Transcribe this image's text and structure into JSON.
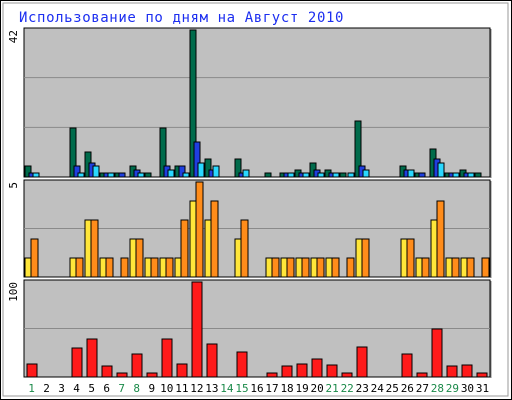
{
  "chart_data": {
    "type": "bar",
    "title": "Использование по дням на Август 2010",
    "categories": [
      "1",
      "2",
      "3",
      "4",
      "5",
      "6",
      "7",
      "8",
      "9",
      "10",
      "11",
      "12",
      "13",
      "14",
      "15",
      "16",
      "17",
      "18",
      "19",
      "20",
      "21",
      "22",
      "23",
      "24",
      "25",
      "26",
      "27",
      "28",
      "29",
      "30",
      "31"
    ],
    "weekend_days": [
      "1",
      "7",
      "8",
      "14",
      "15",
      "21",
      "22",
      "28",
      "29"
    ],
    "panels": [
      {
        "ymax_label": "42",
        "ylim": [
          0,
          42
        ],
        "series": [
          {
            "color": "#006b4b",
            "values": [
              3,
              0,
              0,
              14,
              7,
              1,
              1,
              3,
              1,
              14,
              3,
              42,
              5,
              0,
              5,
              0,
              1,
              1,
              2,
              4,
              2,
              1,
              16,
              0,
              0,
              3,
              1,
              8,
              1,
              2,
              1
            ]
          },
          {
            "color": "#1f3fe0",
            "values": [
              1,
              0,
              0,
              3,
              4,
              1,
              1,
              2,
              0,
              3,
              3,
              10,
              2,
              0,
              1,
              0,
              0,
              1,
              1,
              2,
              1,
              0,
              3,
              0,
              0,
              2,
              1,
              5,
              1,
              1,
              0
            ]
          },
          {
            "color": "#2ad8ff",
            "values": [
              1,
              0,
              0,
              1,
              3,
              1,
              0,
              1,
              0,
              2,
              1,
              4,
              3,
              0,
              2,
              0,
              0,
              1,
              1,
              1,
              1,
              1,
              2,
              0,
              0,
              2,
              0,
              4,
              1,
              1,
              0
            ]
          }
        ]
      },
      {
        "ymax_label": "5",
        "ylim": [
          0,
          5
        ],
        "series": [
          {
            "color": "#ffe63a",
            "values": [
              1,
              0,
              0,
              1,
              3,
              1,
              0,
              2,
              1,
              1,
              1,
              4,
              3,
              0,
              2,
              0,
              1,
              1,
              1,
              1,
              1,
              0,
              2,
              0,
              0,
              2,
              1,
              3,
              1,
              1,
              0
            ]
          },
          {
            "color": "#ff8c1a",
            "values": [
              2,
              0,
              0,
              1,
              3,
              1,
              1,
              2,
              1,
              1,
              3,
              5,
              4,
              0,
              3,
              0,
              1,
              1,
              1,
              1,
              1,
              1,
              2,
              0,
              0,
              2,
              1,
              4,
              1,
              1,
              1
            ]
          }
        ]
      },
      {
        "ymax_label": "100",
        "ylim": [
          0,
          100
        ],
        "series": [
          {
            "color": "#ff1a1a",
            "values": [
              14,
              0,
              0,
              31,
              40,
              12,
              4,
              24,
              4,
              40,
              14,
              100,
              35,
              0,
              26,
              0,
              4,
              12,
              14,
              19,
              13,
              4,
              32,
              0,
              0,
              24,
              4,
              51,
              12,
              13,
              4
            ]
          }
        ]
      }
    ]
  }
}
